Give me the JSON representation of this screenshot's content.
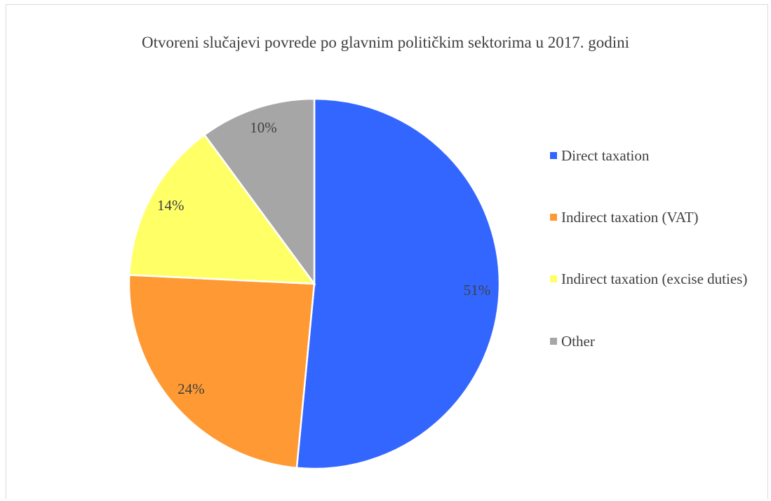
{
  "chart_data": {
    "type": "pie",
    "title": "Otvoreni slučajevi povrede po glavnim političkim sektorima u 2017. godini",
    "categories": [
      "Direct taxation",
      "Indirect taxation (VAT)",
      "Indirect taxation (excise duties)",
      "Other"
    ],
    "values": [
      51,
      24,
      14,
      10
    ],
    "data_labels": [
      "51%",
      "24%",
      "14%",
      "10%"
    ],
    "colors": [
      "#3366ff",
      "#ff9933",
      "#ffff66",
      "#a6a6a6"
    ],
    "legend_position": "right"
  }
}
